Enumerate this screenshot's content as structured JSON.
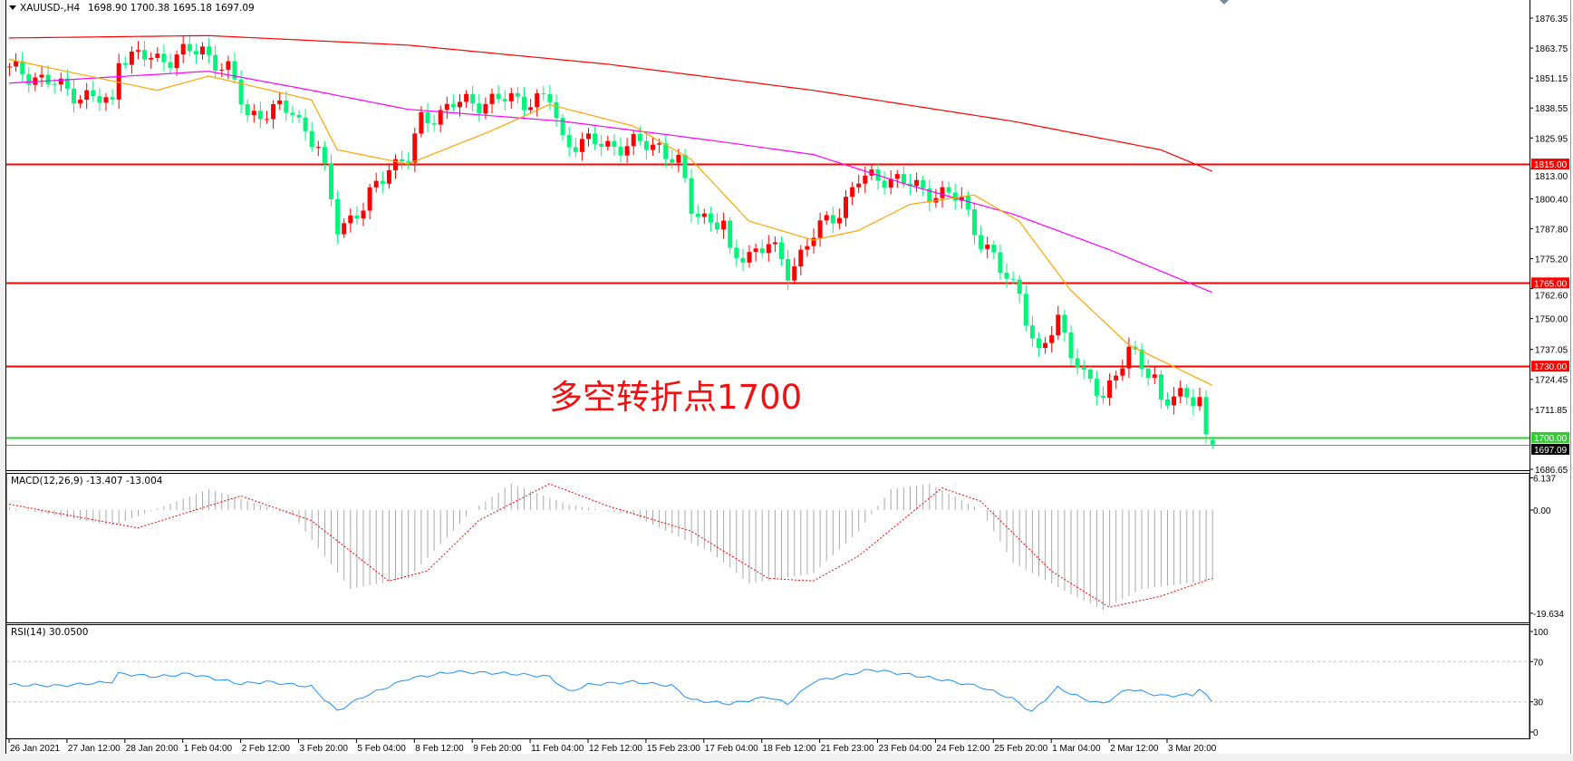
{
  "window": {
    "symbol_title": "XAUUSD-,H4",
    "ohlc_title": "1698.90 1700.38 1695.18 1697.09",
    "annotation": "多空转折点1700"
  },
  "colors": {
    "bull_candle": "#FF0000",
    "bear_candle": "#00F57A",
    "ma_long": "#FF0000",
    "ma_mid": "#FF00FF",
    "ma_short": "#FFA500",
    "level_line": "#FF0000",
    "level_1700": "#32CD32",
    "bid_line": "#778899",
    "macd_hist": "#A9A9A9",
    "macd_signal": "#FF0000",
    "rsi_line": "#1E90FF"
  },
  "chart_data": [
    {
      "type": "candlestick",
      "title": "XAUUSD-,H4",
      "bar_count": 188,
      "last_bar": {
        "open": 1698.9,
        "high": 1700.38,
        "low": 1695.18,
        "close": 1697.09
      },
      "close_path": [
        [
          2,
          1854
        ],
        [
          9,
          1846
        ],
        [
          16,
          1840
        ],
        [
          17,
          1861
        ],
        [
          23,
          1859
        ],
        [
          30,
          1863
        ],
        [
          34,
          1854
        ],
        [
          37,
          1836
        ],
        [
          44,
          1838
        ],
        [
          48,
          1821
        ],
        [
          51,
          1789
        ],
        [
          55,
          1796
        ],
        [
          59,
          1815
        ],
        [
          62,
          1817
        ],
        [
          64,
          1833
        ],
        [
          69,
          1840
        ],
        [
          76,
          1842
        ],
        [
          84,
          1842
        ],
        [
          86,
          1825
        ],
        [
          93,
          1823
        ],
        [
          101,
          1823
        ],
        [
          104,
          1815
        ],
        [
          106,
          1796
        ],
        [
          111,
          1789
        ],
        [
          112,
          1775
        ],
        [
          118,
          1781
        ],
        [
          121,
          1770
        ],
        [
          125,
          1785
        ],
        [
          129,
          1796
        ],
        [
          132,
          1808
        ],
        [
          136,
          1810
        ],
        [
          140,
          1806
        ],
        [
          145,
          1802
        ],
        [
          148,
          1800
        ],
        [
          151,
          1783
        ],
        [
          154,
          1770
        ],
        [
          157,
          1762
        ],
        [
          159,
          1741
        ],
        [
          160,
          1733
        ],
        [
          163,
          1751
        ],
        [
          165,
          1737
        ],
        [
          167,
          1724
        ],
        [
          170,
          1718
        ],
        [
          172,
          1728
        ],
        [
          174,
          1735
        ],
        [
          178,
          1726
        ],
        [
          179,
          1716
        ],
        [
          182,
          1716
        ],
        [
          185,
          1718
        ],
        [
          186,
          1700
        ],
        [
          187,
          1697.09
        ]
      ],
      "moving_averages": [
        {
          "color_key": "ma_long",
          "path": [
            [
              0,
              1868
            ],
            [
              31,
              1869
            ],
            [
              62,
              1865
            ],
            [
              93,
              1857
            ],
            [
              125,
              1846
            ],
            [
              156,
              1833
            ],
            [
              179,
              1821
            ],
            [
              187,
              1812
            ]
          ]
        },
        {
          "color_key": "ma_mid",
          "path": [
            [
              0,
              1849
            ],
            [
              31,
              1854
            ],
            [
              47,
              1846
            ],
            [
              62,
              1838
            ],
            [
              86,
              1833
            ],
            [
              109,
              1825
            ],
            [
              125,
              1819
            ],
            [
              140,
              1806
            ],
            [
              156,
              1794
            ],
            [
              171,
              1779
            ],
            [
              187,
              1761
            ]
          ]
        },
        {
          "color_key": "ma_short",
          "path": [
            [
              0,
              1859
            ],
            [
              23,
              1846
            ],
            [
              31,
              1852
            ],
            [
              47,
              1842
            ],
            [
              51,
              1821
            ],
            [
              62,
              1815
            ],
            [
              75,
              1829
            ],
            [
              84,
              1840
            ],
            [
              97,
              1831
            ],
            [
              106,
              1817
            ],
            [
              115,
              1791
            ],
            [
              125,
              1783
            ],
            [
              132,
              1787
            ],
            [
              140,
              1798
            ],
            [
              150,
              1802
            ],
            [
              157,
              1791
            ],
            [
              165,
              1762
            ],
            [
              174,
              1739
            ],
            [
              187,
              1722
            ]
          ]
        }
      ],
      "levels": [
        {
          "price": 1815.0,
          "label": "1815.00",
          "color_key": "level_line"
        },
        {
          "price": 1765.0,
          "label": "1765.00",
          "color_key": "level_line"
        },
        {
          "price": 1730.0,
          "label": "1730.00",
          "color_key": "level_line"
        },
        {
          "price": 1700.0,
          "label": "1700.00",
          "color_key": "level_1700"
        },
        {
          "price": 1697.09,
          "label": "1697.09",
          "color_key": "bid_line"
        }
      ],
      "ylim": [
        1686.65,
        1876.35
      ],
      "y_ticks": [
        "1876.35",
        "1863.75",
        "1851.15",
        "1838.55",
        "1825.95",
        "1813.00",
        "1800.40",
        "1787.80",
        "1775.20",
        "1762.60",
        "1750.00",
        "1737.05",
        "1724.45",
        "1711.85",
        "1686.65"
      ],
      "x_ticks": [
        {
          "bar": 0,
          "label": "26 Jan 2021"
        },
        {
          "bar": 9,
          "label": "27 Jan 12:00"
        },
        {
          "bar": 18,
          "label": "28 Jan 20:00"
        },
        {
          "bar": 27,
          "label": "1 Feb 04:00"
        },
        {
          "bar": 36,
          "label": "2 Feb 12:00"
        },
        {
          "bar": 45,
          "label": "3 Feb 20:00"
        },
        {
          "bar": 54,
          "label": "5 Feb 04:00"
        },
        {
          "bar": 63,
          "label": "8 Feb 12:00"
        },
        {
          "bar": 72,
          "label": "9 Feb 20:00"
        },
        {
          "bar": 81,
          "label": "11 Feb 04:00"
        },
        {
          "bar": 90,
          "label": "12 Feb 12:00"
        },
        {
          "bar": 99,
          "label": "15 Feb 23:00"
        },
        {
          "bar": 108,
          "label": "17 Feb 04:00"
        },
        {
          "bar": 117,
          "label": "18 Feb 12:00"
        },
        {
          "bar": 126,
          "label": "21 Feb 23:00"
        },
        {
          "bar": 135,
          "label": "23 Feb 04:00"
        },
        {
          "bar": 144,
          "label": "24 Feb 12:00"
        },
        {
          "bar": 153,
          "label": "25 Feb 20:00"
        },
        {
          "bar": 162,
          "label": "1 Mar 04:00"
        },
        {
          "bar": 171,
          "label": "2 Mar 12:00"
        },
        {
          "bar": 180,
          "label": "3 Mar 20:00"
        }
      ]
    },
    {
      "type": "bar",
      "title": "MACD(12,26,9) -13.407 -13.004",
      "ylim": [
        -19.634,
        6.137
      ],
      "y_ticks": [
        "6.137",
        "0.00",
        "-19.634"
      ],
      "main_path": [
        [
          0,
          0.5
        ],
        [
          16,
          -3
        ],
        [
          31,
          4
        ],
        [
          44,
          -1
        ],
        [
          53,
          -15
        ],
        [
          62,
          -13
        ],
        [
          72,
          0
        ],
        [
          78,
          5
        ],
        [
          87,
          1
        ],
        [
          97,
          -1
        ],
        [
          109,
          -8
        ],
        [
          115,
          -14
        ],
        [
          125,
          -12
        ],
        [
          132,
          -4
        ],
        [
          137,
          4
        ],
        [
          143,
          5
        ],
        [
          151,
          0
        ],
        [
          156,
          -10
        ],
        [
          165,
          -16
        ],
        [
          170,
          -19
        ],
        [
          176,
          -15
        ],
        [
          187,
          -13.407
        ]
      ],
      "signal_path": [
        [
          0,
          1.1
        ],
        [
          20,
          -3.4
        ],
        [
          36,
          2.7
        ],
        [
          47,
          -2
        ],
        [
          59,
          -13.5
        ],
        [
          65,
          -11.6
        ],
        [
          73,
          -2
        ],
        [
          84,
          5
        ],
        [
          93,
          0.8
        ],
        [
          106,
          -4
        ],
        [
          118,
          -13
        ],
        [
          125,
          -13.5
        ],
        [
          132,
          -8.8
        ],
        [
          145,
          4.2
        ],
        [
          151,
          1.7
        ],
        [
          162,
          -11.6
        ],
        [
          171,
          -18.5
        ],
        [
          179,
          -16.4
        ],
        [
          187,
          -13.004
        ]
      ]
    },
    {
      "type": "line",
      "title": "RSI(14) 30.0500",
      "ylim": [
        0,
        100
      ],
      "y_ticks": [
        "100",
        "70",
        "30",
        "0"
      ],
      "levels": [
        70,
        30
      ],
      "path": [
        [
          0,
          47
        ],
        [
          8,
          46
        ],
        [
          16,
          50
        ],
        [
          17,
          58
        ],
        [
          23,
          55
        ],
        [
          28,
          58
        ],
        [
          36,
          48
        ],
        [
          40,
          50
        ],
        [
          47,
          45
        ],
        [
          51,
          21
        ],
        [
          55,
          35
        ],
        [
          62,
          53
        ],
        [
          69,
          60
        ],
        [
          78,
          58
        ],
        [
          84,
          55
        ],
        [
          87,
          40
        ],
        [
          90,
          47
        ],
        [
          97,
          50
        ],
        [
          103,
          46
        ],
        [
          106,
          32
        ],
        [
          112,
          28
        ],
        [
          118,
          35
        ],
        [
          121,
          28
        ],
        [
          125,
          50
        ],
        [
          131,
          58
        ],
        [
          134,
          62
        ],
        [
          140,
          57
        ],
        [
          145,
          52
        ],
        [
          151,
          45
        ],
        [
          156,
          33
        ],
        [
          159,
          20
        ],
        [
          163,
          44
        ],
        [
          167,
          33
        ],
        [
          170,
          28
        ],
        [
          174,
          43
        ],
        [
          179,
          36
        ],
        [
          184,
          37
        ],
        [
          185,
          43
        ],
        [
          187,
          30.05
        ]
      ]
    }
  ]
}
